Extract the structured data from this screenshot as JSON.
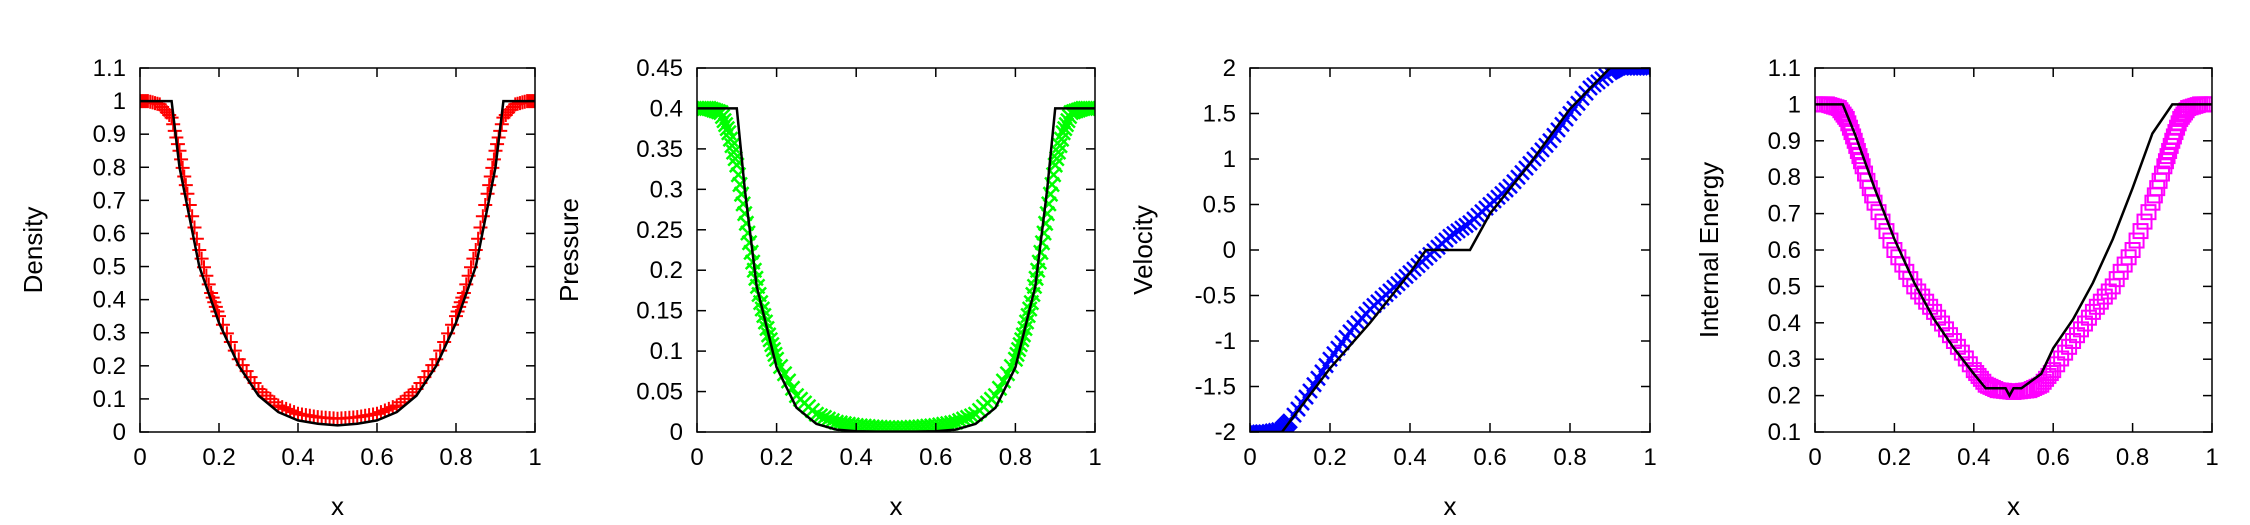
{
  "chart_data": [
    {
      "type": "scatter",
      "title": "",
      "xlabel": "x",
      "ylabel": "Density",
      "xlim": [
        0,
        1
      ],
      "ylim": [
        0,
        1.1
      ],
      "xticks": [
        "0",
        "0.2",
        "0.4",
        "0.6",
        "0.8",
        "1"
      ],
      "yticks": [
        "0",
        "0.1",
        "0.2",
        "0.3",
        "0.4",
        "0.5",
        "0.6",
        "0.7",
        "0.8",
        "0.9",
        "1",
        "1.1"
      ],
      "grid": false,
      "legend": "none",
      "marker": "plus",
      "marker_color": "#ff0000",
      "reference_color": "#000000",
      "numeric_series": {
        "x": [
          0,
          0.02,
          0.05,
          0.08,
          0.1,
          0.12,
          0.15,
          0.18,
          0.2,
          0.25,
          0.3,
          0.35,
          0.4,
          0.45,
          0.5,
          0.55,
          0.6,
          0.65,
          0.7,
          0.75,
          0.8,
          0.82,
          0.85,
          0.88,
          0.9,
          0.92,
          0.95,
          0.98,
          1
        ],
        "y": [
          1.0,
          1.0,
          0.99,
          0.95,
          0.85,
          0.72,
          0.55,
          0.42,
          0.35,
          0.22,
          0.13,
          0.08,
          0.055,
          0.045,
          0.04,
          0.045,
          0.055,
          0.08,
          0.13,
          0.22,
          0.35,
          0.42,
          0.55,
          0.72,
          0.85,
          0.95,
          0.99,
          1.0,
          1.0
        ]
      },
      "reference_curve": {
        "x": [
          0,
          0.08,
          0.1,
          0.15,
          0.2,
          0.25,
          0.3,
          0.35,
          0.4,
          0.45,
          0.5,
          0.55,
          0.6,
          0.65,
          0.7,
          0.75,
          0.8,
          0.85,
          0.9,
          0.92,
          1
        ],
        "y": [
          1.0,
          1.0,
          0.8,
          0.5,
          0.33,
          0.2,
          0.11,
          0.06,
          0.035,
          0.025,
          0.02,
          0.025,
          0.035,
          0.06,
          0.11,
          0.2,
          0.33,
          0.5,
          0.8,
          1.0,
          1.0
        ]
      }
    },
    {
      "type": "scatter",
      "title": "",
      "xlabel": "x",
      "ylabel": "Pressure",
      "xlim": [
        0,
        1
      ],
      "ylim": [
        0,
        0.45
      ],
      "xticks": [
        "0",
        "0.2",
        "0.4",
        "0.6",
        "0.8",
        "1"
      ],
      "yticks": [
        "0",
        "0.05",
        "0.1",
        "0.15",
        "0.2",
        "0.25",
        "0.3",
        "0.35",
        "0.4",
        "0.45"
      ],
      "grid": false,
      "legend": "none",
      "marker": "cross",
      "marker_color": "#00ff00",
      "reference_color": "#000000",
      "numeric_series": {
        "x": [
          0,
          0.03,
          0.06,
          0.08,
          0.1,
          0.12,
          0.14,
          0.16,
          0.18,
          0.2,
          0.25,
          0.3,
          0.35,
          0.4,
          0.45,
          0.5,
          0.55,
          0.6,
          0.65,
          0.7,
          0.75,
          0.8,
          0.82,
          0.84,
          0.86,
          0.88,
          0.9,
          0.92,
          0.94,
          0.97,
          1
        ],
        "y": [
          0.4,
          0.4,
          0.395,
          0.37,
          0.33,
          0.27,
          0.21,
          0.16,
          0.12,
          0.09,
          0.045,
          0.022,
          0.012,
          0.008,
          0.006,
          0.005,
          0.006,
          0.008,
          0.012,
          0.022,
          0.045,
          0.09,
          0.12,
          0.16,
          0.21,
          0.27,
          0.33,
          0.37,
          0.395,
          0.4,
          0.4
        ]
      },
      "reference_curve": {
        "x": [
          0,
          0.1,
          0.12,
          0.15,
          0.2,
          0.25,
          0.3,
          0.35,
          0.4,
          0.45,
          0.5,
          0.55,
          0.6,
          0.65,
          0.7,
          0.75,
          0.8,
          0.85,
          0.88,
          0.9,
          1
        ],
        "y": [
          0.4,
          0.4,
          0.3,
          0.18,
          0.08,
          0.03,
          0.01,
          0.003,
          0.001,
          0.0005,
          0.0005,
          0.0005,
          0.001,
          0.003,
          0.01,
          0.03,
          0.08,
          0.18,
          0.3,
          0.4,
          0.4
        ]
      }
    },
    {
      "type": "scatter",
      "title": "",
      "xlabel": "x",
      "ylabel": "Velocity",
      "xlim": [
        0,
        1
      ],
      "ylim": [
        -2,
        2
      ],
      "xticks": [
        "0",
        "0.2",
        "0.4",
        "0.6",
        "0.8",
        "1"
      ],
      "yticks": [
        "-2",
        "-1.5",
        "-1",
        "-0.5",
        "0",
        "0.5",
        "1",
        "1.5",
        "2"
      ],
      "grid": false,
      "legend": "none",
      "marker": "cross",
      "marker_color": "#0000ff",
      "reference_color": "#000000",
      "numeric_series": {
        "x": [
          0,
          0.04,
          0.08,
          0.1,
          0.15,
          0.2,
          0.25,
          0.3,
          0.35,
          0.4,
          0.45,
          0.5,
          0.55,
          0.6,
          0.65,
          0.7,
          0.75,
          0.8,
          0.85,
          0.9,
          0.92,
          0.96,
          1
        ],
        "y": [
          -2.0,
          -2.0,
          -1.97,
          -1.88,
          -1.55,
          -1.2,
          -0.9,
          -0.65,
          -0.45,
          -0.25,
          -0.05,
          0.15,
          0.3,
          0.5,
          0.7,
          0.95,
          1.2,
          1.5,
          1.78,
          1.95,
          2.0,
          2.0,
          2.0
        ]
      },
      "reference_curve": {
        "x": [
          0,
          0.08,
          0.2,
          0.3,
          0.4,
          0.44,
          0.55,
          0.6,
          0.7,
          0.8,
          0.9,
          0.92,
          1
        ],
        "y": [
          -2.0,
          -2.0,
          -1.3,
          -0.8,
          -0.25,
          0.0,
          0.0,
          0.4,
          0.95,
          1.55,
          2.0,
          2.0,
          2.0
        ]
      }
    },
    {
      "type": "scatter",
      "title": "",
      "xlabel": "x",
      "ylabel": "Internal Energy",
      "xlim": [
        0,
        1
      ],
      "ylim": [
        0.1,
        1.1
      ],
      "xticks": [
        "0",
        "0.2",
        "0.4",
        "0.6",
        "0.8",
        "1"
      ],
      "yticks": [
        "0.1",
        "0.2",
        "0.3",
        "0.4",
        "0.5",
        "0.6",
        "0.7",
        "0.8",
        "0.9",
        "1",
        "1.1"
      ],
      "grid": false,
      "legend": "none",
      "marker": "square",
      "marker_color": "#ff00ff",
      "reference_color": "#000000",
      "numeric_series": {
        "x": [
          0,
          0.03,
          0.06,
          0.08,
          0.1,
          0.12,
          0.15,
          0.2,
          0.25,
          0.3,
          0.35,
          0.4,
          0.43,
          0.46,
          0.5,
          0.54,
          0.57,
          0.6,
          0.65,
          0.7,
          0.75,
          0.8,
          0.85,
          0.88,
          0.9,
          0.92,
          0.94,
          0.97,
          1
        ],
        "y": [
          1.0,
          1.0,
          0.99,
          0.96,
          0.9,
          0.83,
          0.73,
          0.6,
          0.5,
          0.43,
          0.35,
          0.27,
          0.23,
          0.215,
          0.21,
          0.215,
          0.23,
          0.27,
          0.35,
          0.43,
          0.5,
          0.6,
          0.73,
          0.83,
          0.9,
          0.96,
          0.99,
          1.0,
          1.0
        ]
      },
      "reference_curve": {
        "x": [
          0,
          0.07,
          0.1,
          0.15,
          0.2,
          0.25,
          0.3,
          0.35,
          0.4,
          0.43,
          0.48,
          0.49,
          0.5,
          0.52,
          0.57,
          0.6,
          0.65,
          0.7,
          0.75,
          0.8,
          0.85,
          0.9,
          0.93,
          1
        ],
        "y": [
          1.0,
          1.0,
          0.92,
          0.77,
          0.63,
          0.51,
          0.41,
          0.33,
          0.26,
          0.22,
          0.22,
          0.2,
          0.22,
          0.22,
          0.26,
          0.33,
          0.41,
          0.51,
          0.63,
          0.77,
          0.92,
          1.0,
          1.0,
          1.0
        ]
      }
    }
  ]
}
